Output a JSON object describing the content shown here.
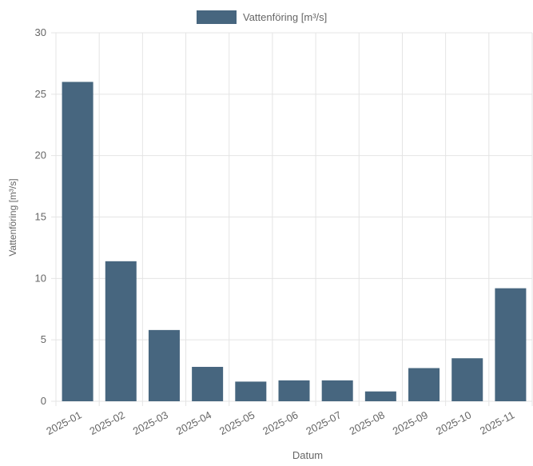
{
  "chart_data": {
    "type": "bar",
    "legend": {
      "label": "Vattenföring [m³/s]",
      "placement": "top-center"
    },
    "xlabel": "Datum",
    "ylabel": "Vattenföring [m³/s]",
    "ylim": [
      0,
      30
    ],
    "yticks": [
      0,
      5,
      10,
      15,
      20,
      25,
      30
    ],
    "grid": true,
    "categories": [
      "2025-01",
      "2025-02",
      "2025-03",
      "2025-04",
      "2025-05",
      "2025-06",
      "2025-07",
      "2025-08",
      "2025-09",
      "2025-10",
      "2025-11"
    ],
    "series": [
      {
        "name": "Vattenföring [m³/s]",
        "color": "#47667f",
        "values": [
          26.0,
          11.4,
          5.8,
          2.8,
          1.6,
          1.7,
          1.7,
          0.8,
          2.7,
          3.5,
          9.2
        ]
      }
    ]
  }
}
